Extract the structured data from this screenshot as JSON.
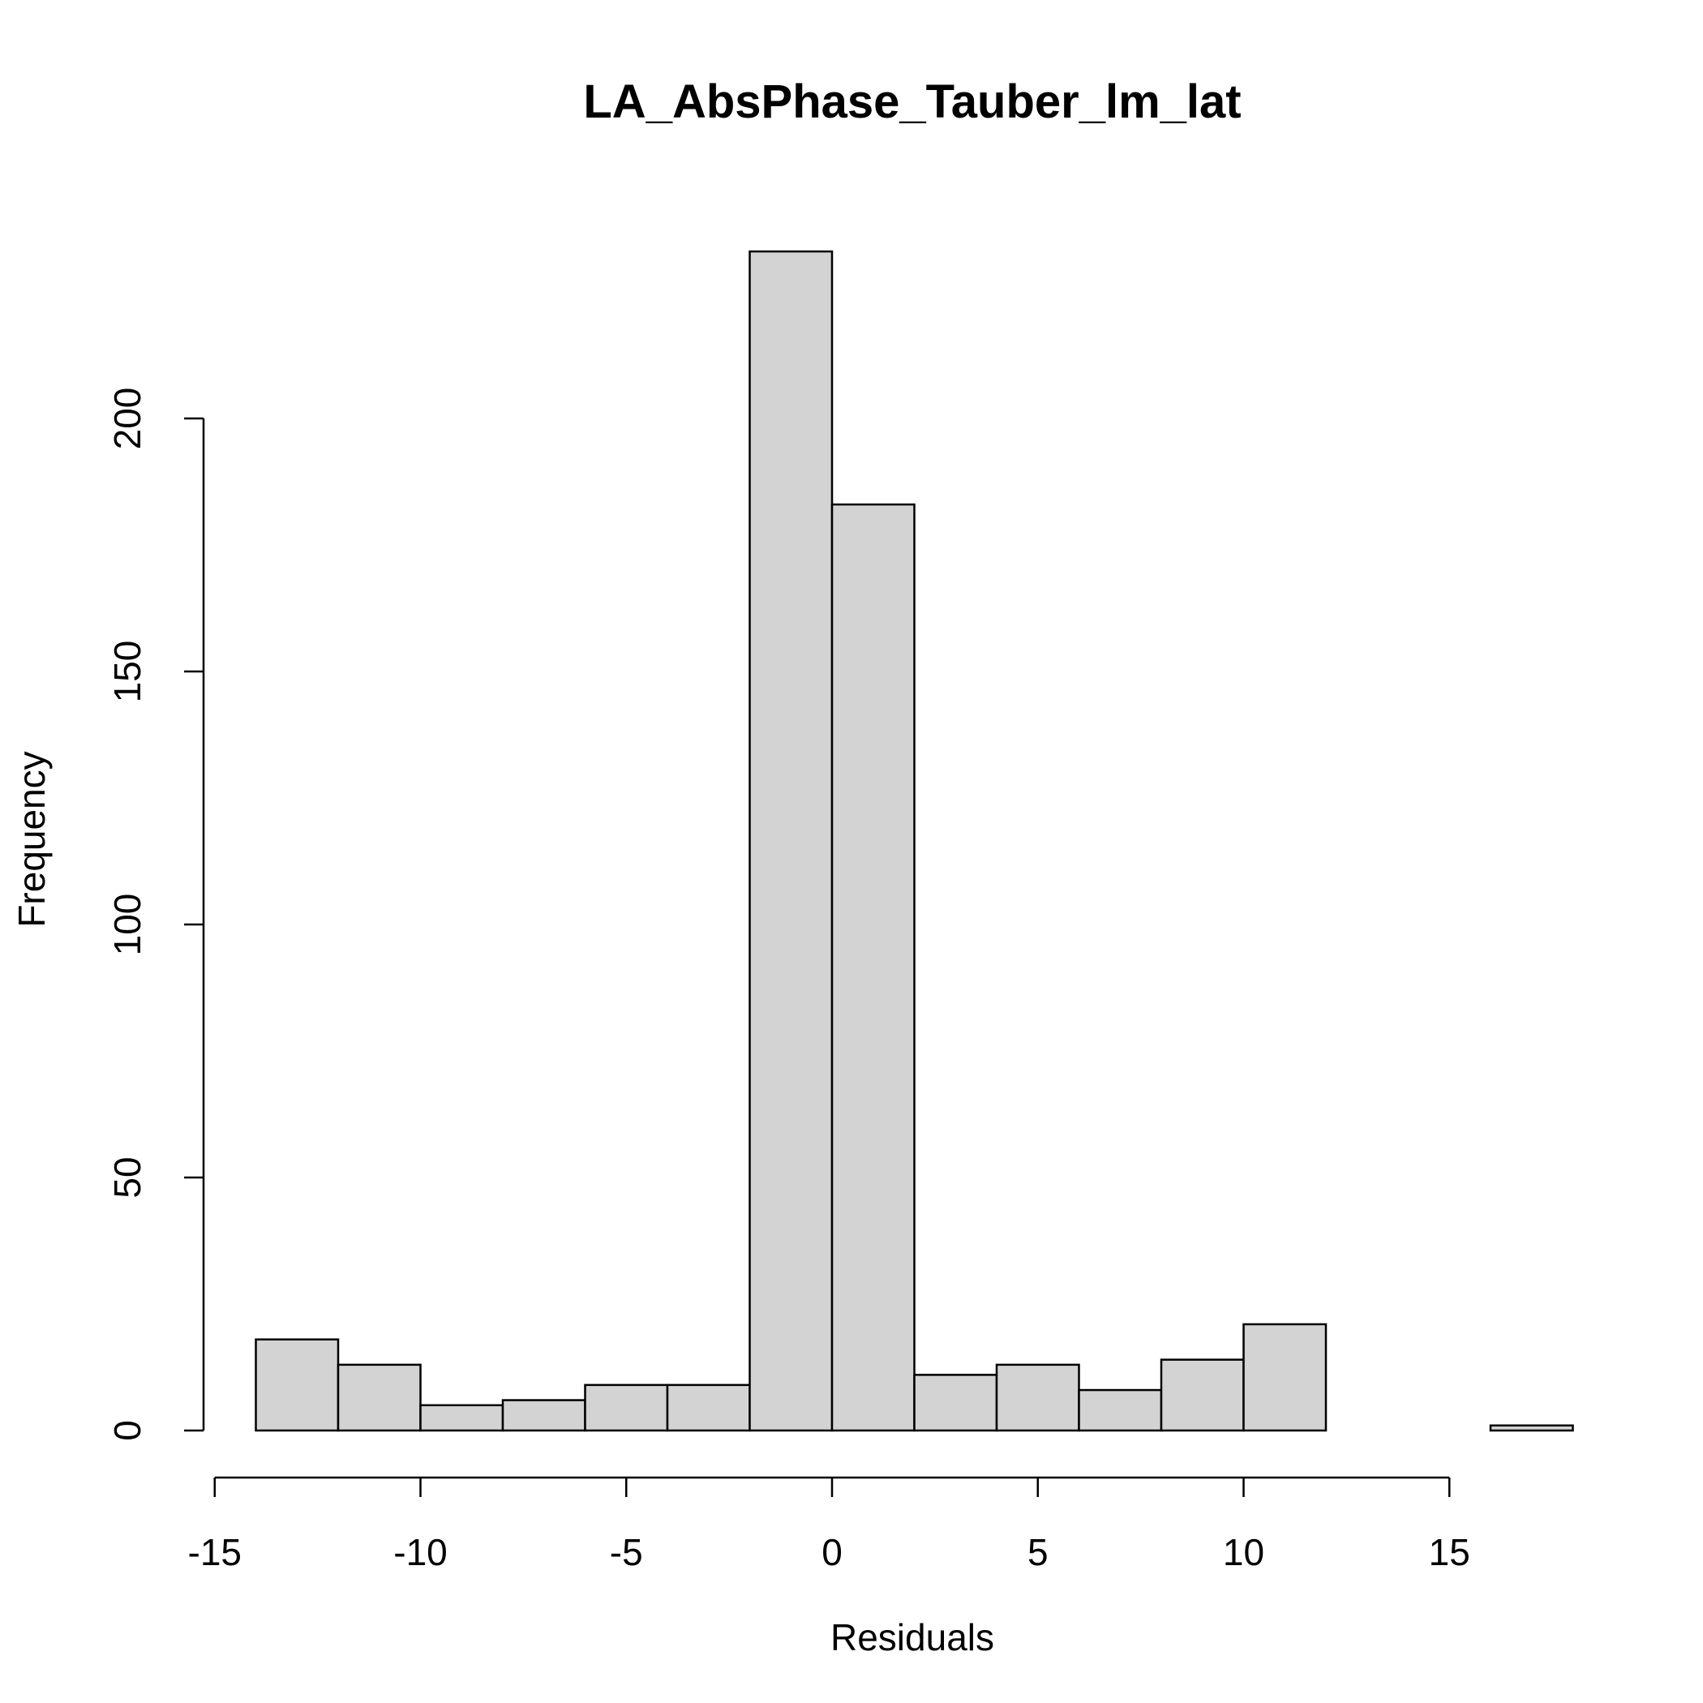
{
  "chart_data": {
    "type": "bar",
    "title": "LA_AbsPhase_Tauber_lm_lat",
    "xlabel": "Residuals",
    "ylabel": "Frequency",
    "bar_color": "#d3d3d3",
    "border_color": "#000000",
    "background": "#ffffff",
    "grid": false,
    "legend": "none",
    "xlim": [
      -15,
      18
    ],
    "ylim": [
      0,
      240
    ],
    "x_ticks": [
      -15,
      -10,
      -5,
      0,
      5,
      10,
      15
    ],
    "x_tick_labels": [
      "-15",
      "-10",
      "-5",
      "0",
      "5",
      "10",
      "15"
    ],
    "y_ticks": [
      0,
      50,
      100,
      150,
      200
    ],
    "y_tick_labels": [
      "0",
      "50",
      "100",
      "150",
      "200"
    ],
    "bins": [
      {
        "start": -14,
        "end": -12,
        "count": 18
      },
      {
        "start": -12,
        "end": -10,
        "count": 13
      },
      {
        "start": -10,
        "end": -8,
        "count": 5
      },
      {
        "start": -8,
        "end": -6,
        "count": 6
      },
      {
        "start": -6,
        "end": -4,
        "count": 9
      },
      {
        "start": -4,
        "end": -2,
        "count": 9
      },
      {
        "start": -2,
        "end": 0,
        "count": 233
      },
      {
        "start": 0,
        "end": 2,
        "count": 183
      },
      {
        "start": 2,
        "end": 4,
        "count": 11
      },
      {
        "start": 4,
        "end": 6,
        "count": 13
      },
      {
        "start": 6,
        "end": 8,
        "count": 8
      },
      {
        "start": 8,
        "end": 10,
        "count": 14
      },
      {
        "start": 10,
        "end": 12,
        "count": 21
      },
      {
        "start": 12,
        "end": 14,
        "count": 0
      },
      {
        "start": 14,
        "end": 16,
        "count": 0
      },
      {
        "start": 16,
        "end": 18,
        "count": 1
      }
    ]
  }
}
